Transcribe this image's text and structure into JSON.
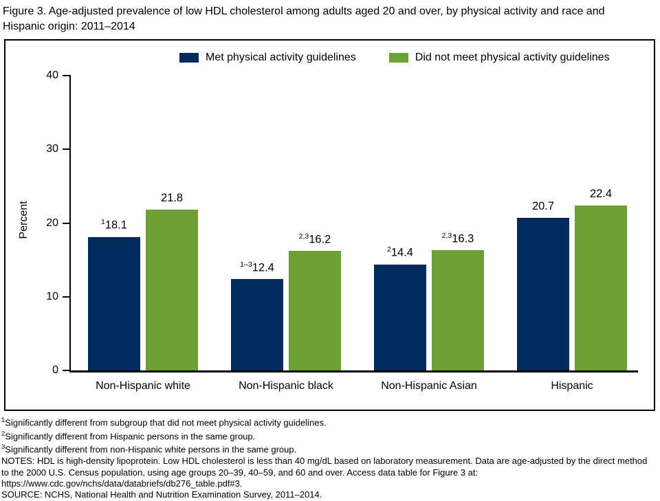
{
  "page": {
    "title": "Figure 3. Age-adjusted prevalence of low HDL cholesterol among adults aged 20 and over, by physical activity and race and Hispanic origin: 2011–2014"
  },
  "chart_data": {
    "type": "bar",
    "title": "Age-adjusted prevalence of low HDL cholesterol among adults aged 20 and over, by physical activity and race and Hispanic origin: 2011–2014",
    "ylabel": "Percent",
    "ylim": [
      0,
      40
    ],
    "yticks": [
      0,
      10,
      20,
      30,
      40
    ],
    "grid": false,
    "legend_position": "top",
    "categories": [
      "Non-Hispanic white",
      "Non-Hispanic black",
      "Non-Hispanic Asian",
      "Hispanic"
    ],
    "series": [
      {
        "name": "Met physical activity guidelines",
        "color": "#012a5c",
        "values": [
          18.1,
          12.4,
          14.4,
          20.7
        ],
        "label_prefixes": [
          "1",
          "1–3",
          "2",
          ""
        ]
      },
      {
        "name": "Did not meet physical activity guidelines",
        "color": "#6ca033",
        "values": [
          21.8,
          16.2,
          16.3,
          22.4
        ],
        "label_prefixes": [
          "",
          "2,3",
          "2,3",
          ""
        ]
      }
    ]
  },
  "footnotes": [
    {
      "marker": "1",
      "text": "Significantly different from subgroup that did not meet physical activity guidelines."
    },
    {
      "marker": "2",
      "text": "Significantly different from Hispanic persons in the same group."
    },
    {
      "marker": "3",
      "text": "Significantly different from non-Hispanic white persons in the same group."
    }
  ],
  "notes": "NOTES: HDL is high-density lipoprotein. Low HDL cholesterol is less than 40 mg/dL based on laboratory measurement. Data are age-adjusted by the direct method to the 2000 U.S. Census population, using age groups 20–39, 40–59, and 60 and over. Access data table for Figure 3 at: https://www.cdc.gov/nchs/data/databriefs/db276_table.pdf#3.",
  "source": "SOURCE: NCHS, National Health and Nutrition Examination Survey, 2011–2014."
}
